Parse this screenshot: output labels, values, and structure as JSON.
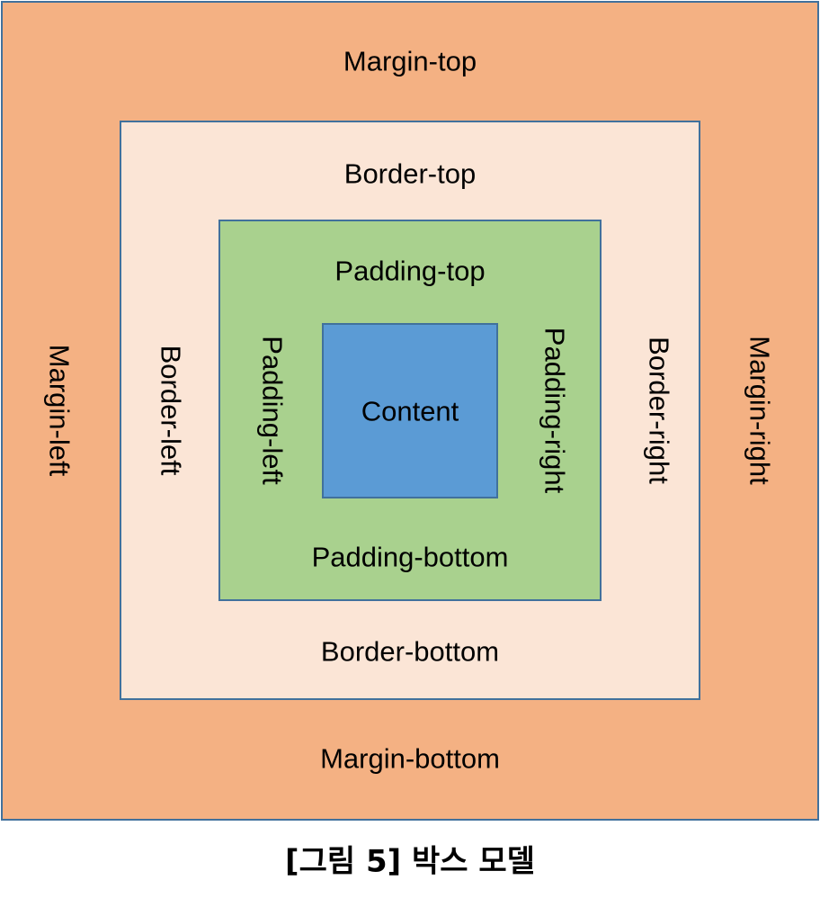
{
  "diagram": {
    "colors": {
      "margin": "#F4B183",
      "border": "#FBE5D6",
      "padding": "#A9D18E",
      "content": "#5B9BD5",
      "outline": "#41719C"
    },
    "margin": {
      "top": "Margin-top",
      "bottom": "Margin-bottom",
      "left": "Margin-left",
      "right": "Margin-right"
    },
    "border": {
      "top": "Border-top",
      "bottom": "Border-bottom",
      "left": "Border-left",
      "right": "Border-right"
    },
    "padding": {
      "top": "Padding-top",
      "bottom": "Padding-bottom",
      "left": "Padding-left",
      "right": "Padding-right"
    },
    "content": "Content"
  },
  "caption": "[그림 5] 박스 모델"
}
